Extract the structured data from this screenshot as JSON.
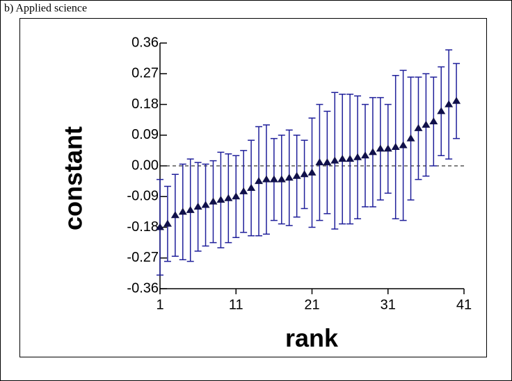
{
  "chart_data": {
    "type": "errorbar",
    "title": "b) Applied science",
    "xlabel": "rank",
    "ylabel": "constant",
    "x": [
      1,
      2,
      3,
      4,
      5,
      6,
      7,
      8,
      9,
      10,
      11,
      12,
      13,
      14,
      15,
      16,
      17,
      18,
      19,
      20,
      21,
      22,
      23,
      24,
      25,
      26,
      27,
      28,
      29,
      30,
      31,
      32,
      33,
      34,
      35,
      36,
      37,
      38,
      39,
      40
    ],
    "values": [
      -0.18,
      -0.17,
      -0.145,
      -0.135,
      -0.13,
      -0.12,
      -0.115,
      -0.105,
      -0.1,
      -0.095,
      -0.09,
      -0.075,
      -0.065,
      -0.045,
      -0.04,
      -0.04,
      -0.04,
      -0.035,
      -0.03,
      -0.025,
      -0.02,
      0.01,
      0.01,
      0.015,
      0.02,
      0.02,
      0.025,
      0.03,
      0.04,
      0.05,
      0.05,
      0.055,
      0.06,
      0.08,
      0.11,
      0.12,
      0.13,
      0.16,
      0.18,
      0.19
    ],
    "errors": [
      0.14,
      0.11,
      0.12,
      0.14,
      0.15,
      0.13,
      0.12,
      0.12,
      0.14,
      0.13,
      0.12,
      0.12,
      0.14,
      0.16,
      0.16,
      0.12,
      0.13,
      0.14,
      0.12,
      0.1,
      0.16,
      0.17,
      0.15,
      0.2,
      0.19,
      0.19,
      0.18,
      0.15,
      0.16,
      0.15,
      0.13,
      0.21,
      0.22,
      0.18,
      0.15,
      0.15,
      0.13,
      0.13,
      0.16,
      0.11
    ],
    "color": "#1f1f9a",
    "marker_color": "#10104a",
    "xlim": [
      1,
      41
    ],
    "ylim": [
      -0.36,
      0.36
    ],
    "xticks": [
      1,
      11,
      21,
      31,
      41
    ],
    "yticks": [
      0.36,
      0.27,
      0.18,
      0.09,
      {
        "value": 0,
        "label": "0.00"
      },
      -0.09,
      -0.18,
      -0.27,
      -0.36
    ],
    "zero_line": true
  }
}
